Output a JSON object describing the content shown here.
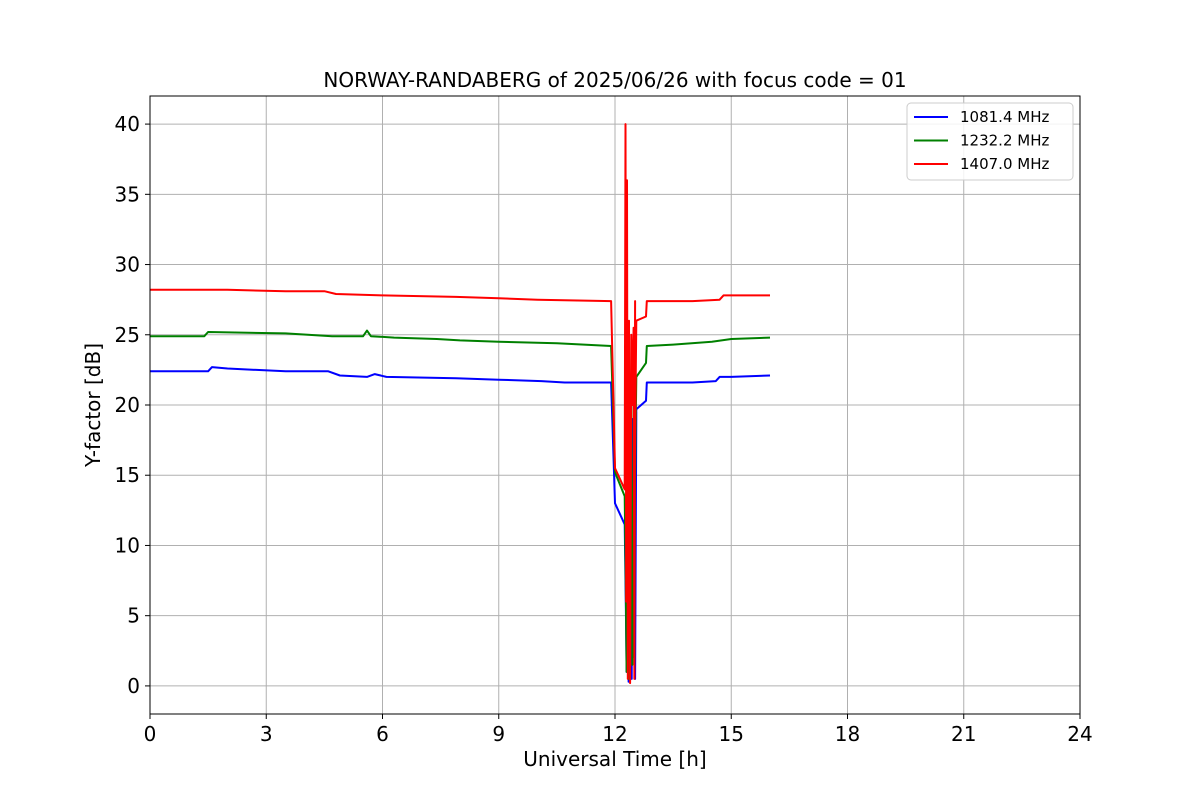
{
  "chart_data": {
    "type": "line",
    "title": "NORWAY-RANDABERG of 2025/06/26 with focus code = 01",
    "xlabel": "Universal Time [h]",
    "ylabel": "Y-factor [dB]",
    "xlim": [
      0,
      24
    ],
    "ylim": [
      -2,
      42
    ],
    "xticks": [
      0,
      3,
      6,
      9,
      12,
      15,
      18,
      21,
      24
    ],
    "yticks": [
      0,
      5,
      10,
      15,
      20,
      25,
      30,
      35,
      40
    ],
    "grid": true,
    "legend_position": "top-right",
    "series": [
      {
        "name": "1081.4 MHz",
        "color": "#0000ff",
        "points": [
          [
            0,
            22.4
          ],
          [
            1.5,
            22.4
          ],
          [
            1.6,
            22.7
          ],
          [
            2.0,
            22.6
          ],
          [
            3.5,
            22.4
          ],
          [
            4.6,
            22.4
          ],
          [
            4.9,
            22.1
          ],
          [
            5.6,
            22.0
          ],
          [
            5.8,
            22.2
          ],
          [
            6.1,
            22.0
          ],
          [
            7.9,
            21.9
          ],
          [
            9.0,
            21.8
          ],
          [
            10.1,
            21.7
          ],
          [
            10.7,
            21.6
          ],
          [
            11.9,
            21.6
          ],
          [
            12.0,
            13.0
          ],
          [
            12.25,
            11.5
          ],
          [
            12.28,
            6.0
          ],
          [
            12.3,
            1.0
          ],
          [
            12.32,
            22.0
          ],
          [
            12.35,
            0.3
          ],
          [
            12.38,
            4.0
          ],
          [
            12.4,
            17.5
          ],
          [
            12.43,
            0.5
          ],
          [
            12.45,
            19.0
          ],
          [
            12.48,
            7.5
          ],
          [
            12.5,
            18.0
          ],
          [
            12.52,
            0.5
          ],
          [
            12.55,
            19.5
          ],
          [
            12.5,
            10.0
          ],
          [
            12.55,
            19.7
          ],
          [
            12.8,
            20.3
          ],
          [
            12.82,
            21.6
          ],
          [
            14.0,
            21.6
          ],
          [
            14.6,
            21.7
          ],
          [
            14.7,
            22.0
          ],
          [
            15.0,
            22.0
          ],
          [
            16.0,
            22.1
          ]
        ]
      },
      {
        "name": "1232.2 MHz",
        "color": "#008000",
        "points": [
          [
            0,
            24.9
          ],
          [
            1.4,
            24.9
          ],
          [
            1.5,
            25.2
          ],
          [
            3.5,
            25.1
          ],
          [
            4.7,
            24.9
          ],
          [
            5.5,
            24.9
          ],
          [
            5.6,
            25.3
          ],
          [
            5.7,
            24.9
          ],
          [
            6.3,
            24.8
          ],
          [
            7.4,
            24.7
          ],
          [
            8.0,
            24.6
          ],
          [
            9.0,
            24.5
          ],
          [
            10.5,
            24.4
          ],
          [
            11.2,
            24.3
          ],
          [
            11.9,
            24.2
          ],
          [
            12.0,
            15.2
          ],
          [
            12.25,
            13.5
          ],
          [
            12.28,
            7.0
          ],
          [
            12.3,
            1.0
          ],
          [
            12.32,
            24.0
          ],
          [
            12.35,
            0.5
          ],
          [
            12.4,
            20.0
          ],
          [
            12.45,
            1.5
          ],
          [
            12.48,
            21.0
          ],
          [
            12.5,
            2.0
          ],
          [
            12.52,
            22.0
          ],
          [
            12.5,
            11.2
          ],
          [
            12.55,
            22.0
          ],
          [
            12.8,
            23.0
          ],
          [
            12.82,
            24.2
          ],
          [
            13.5,
            24.3
          ],
          [
            14.5,
            24.5
          ],
          [
            15.0,
            24.7
          ],
          [
            16.0,
            24.8
          ]
        ]
      },
      {
        "name": "1407.0 MHz",
        "color": "#ff0000",
        "points": [
          [
            0,
            28.2
          ],
          [
            2.0,
            28.2
          ],
          [
            3.5,
            28.1
          ],
          [
            4.5,
            28.1
          ],
          [
            4.8,
            27.9
          ],
          [
            6.0,
            27.8
          ],
          [
            7.9,
            27.7
          ],
          [
            9.0,
            27.6
          ],
          [
            10.0,
            27.5
          ],
          [
            11.9,
            27.4
          ],
          [
            12.0,
            15.5
          ],
          [
            12.25,
            14.0
          ],
          [
            12.27,
            40.0
          ],
          [
            12.29,
            6.0
          ],
          [
            12.31,
            36.0
          ],
          [
            12.33,
            0.5
          ],
          [
            12.36,
            26.0
          ],
          [
            12.39,
            0.2
          ],
          [
            12.42,
            25.0
          ],
          [
            12.45,
            20.0
          ],
          [
            12.48,
            25.5
          ],
          [
            12.5,
            0.5
          ],
          [
            12.52,
            27.4
          ],
          [
            12.5,
            12.5
          ],
          [
            12.55,
            26.0
          ],
          [
            12.8,
            26.3
          ],
          [
            12.82,
            27.4
          ],
          [
            14.0,
            27.4
          ],
          [
            14.7,
            27.5
          ],
          [
            14.8,
            27.8
          ],
          [
            16.0,
            27.8
          ]
        ]
      }
    ]
  }
}
